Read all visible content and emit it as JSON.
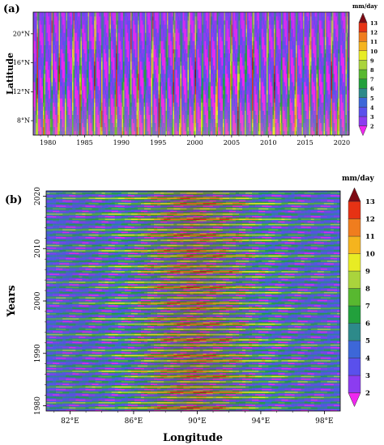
{
  "chart_data": [
    {
      "panel": "(a)",
      "type": "heatmap",
      "description_kind": "hovmoller-latitude-time",
      "xlabel": "",
      "ylabel": "Latitude",
      "x_ticks": [
        "1980",
        "1985",
        "1990",
        "1995",
        "2000",
        "2005",
        "2010",
        "2015",
        "2020"
      ],
      "x_tick_values": [
        1980,
        1985,
        1990,
        1995,
        2000,
        2005,
        2010,
        2015,
        2020
      ],
      "xlim": [
        1978,
        2021
      ],
      "y_ticks": [
        "8°N",
        "12°N",
        "16°N",
        "20°N"
      ],
      "y_tick_values": [
        8,
        12,
        16,
        20
      ],
      "ylim": [
        6,
        23
      ],
      "colorbar": {
        "unit": "mm/day",
        "levels": [
          2,
          3,
          4,
          5,
          6,
          7,
          8,
          9,
          10,
          11,
          12,
          13
        ],
        "labels": [
          "2",
          "3",
          "4",
          "5",
          "6",
          "7",
          "8",
          "9",
          "10",
          "11",
          "12",
          "13"
        ]
      }
    },
    {
      "panel": "(b)",
      "type": "heatmap",
      "description_kind": "hovmoller-longitude-time",
      "xlabel": "Longitude",
      "ylabel": "Years",
      "x_ticks": [
        "82°E",
        "86°E",
        "90°E",
        "94°E",
        "98°E"
      ],
      "x_tick_values": [
        82,
        86,
        90,
        94,
        98
      ],
      "xlim": [
        80.5,
        99
      ],
      "y_ticks": [
        "1980",
        "1990",
        "2000",
        "2010",
        "2020"
      ],
      "y_tick_values": [
        1980,
        1990,
        2000,
        2010,
        2020
      ],
      "ylim": [
        1979,
        2021
      ],
      "colorbar": {
        "unit": "mm/day",
        "levels": [
          2,
          3,
          4,
          5,
          6,
          7,
          8,
          9,
          10,
          11,
          12,
          13
        ],
        "labels": [
          "2",
          "3",
          "4",
          "5",
          "6",
          "7",
          "8",
          "9",
          "10",
          "11",
          "12",
          "13"
        ]
      }
    }
  ],
  "palette": [
    "#f026f0",
    "#8c3cf0",
    "#5a50ec",
    "#3d67d8",
    "#2d8a8a",
    "#22a03c",
    "#58b830",
    "#aad43c",
    "#e8ec24",
    "#f5b41e",
    "#f07d1e",
    "#e63214",
    "#b4141e",
    "#7d0a14"
  ]
}
